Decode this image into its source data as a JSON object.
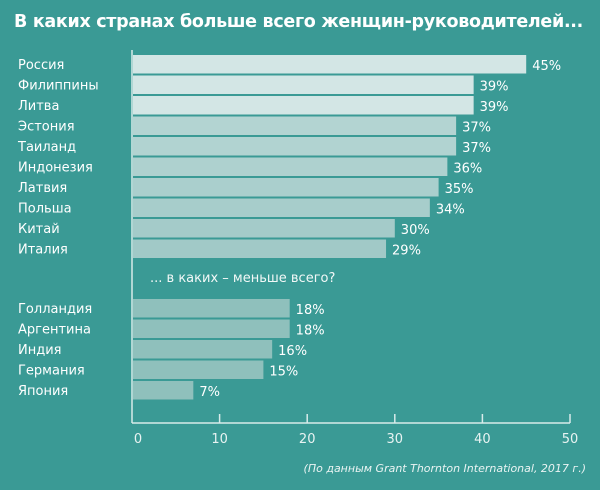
{
  "chart_data": {
    "type": "bar",
    "orientation": "horizontal",
    "title": "В каких странах больше всего женщин-руководителей...",
    "subtitle": "... в каких – меньше всего?",
    "source": "(По данным Grant Thornton International, 2017 г.)",
    "xlim": [
      0,
      50
    ],
    "xticks": [
      "0",
      "10",
      "20",
      "30",
      "40",
      "50"
    ],
    "groups": [
      {
        "name": "top",
        "categories": [
          "Россия",
          "Филиппины",
          "Литва",
          "Эстония",
          "Таиланд",
          "Индонезия",
          "Латвия",
          "Польша",
          "Китай",
          "Италия"
        ],
        "values": [
          45,
          39,
          39,
          37,
          37,
          36,
          35,
          34,
          30,
          29
        ],
        "labels": [
          "45%",
          "39%",
          "39%",
          "37%",
          "37%",
          "36%",
          "35%",
          "34%",
          "30%",
          "29%"
        ],
        "colors": [
          "#d3e6e5",
          "#d3e6e5",
          "#d3e6e5",
          "#b3d4d2",
          "#b1d3d1",
          "#aed1cf",
          "#aacfcd",
          "#a7cdcb",
          "#a4cbc9",
          "#a1c9c7"
        ]
      },
      {
        "name": "bottom",
        "categories": [
          "Голландия",
          "Аргентина",
          "Индия",
          "Германия",
          "Япония"
        ],
        "values": [
          18,
          18,
          16,
          15,
          7
        ],
        "labels": [
          "18%",
          "18%",
          "16%",
          "15%",
          "7%"
        ],
        "colors": [
          "#8fc0bc",
          "#8fc0bc",
          "#8fc0bc",
          "#8fc0bc",
          "#8fc0bc"
        ]
      }
    ]
  },
  "colors": {
    "background": "#3a9a95",
    "axis": "#d8ebea"
  }
}
